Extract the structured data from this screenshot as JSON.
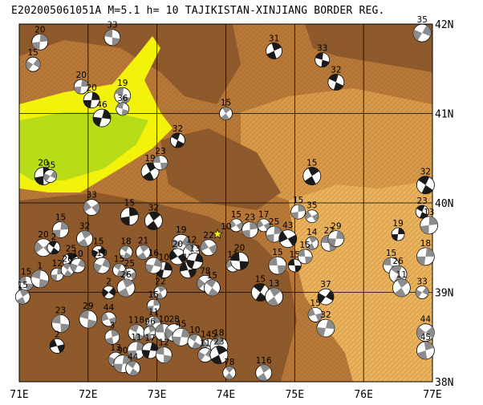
{
  "title": "E202005061051A M=5.1 h= 10 TAJIKISTAN-XINJIANG BORDER REG.",
  "colors": {
    "terrain_dark": "#8e5a2c",
    "terrain_mid": "#b87838",
    "terrain_light": "#d89a48",
    "terrain_pale": "#eab25a",
    "basin_yellow": "#f2f20a",
    "basin_green": "#b8dc18",
    "grid": "#000000",
    "epicenter": "#f2f20a"
  },
  "map": {
    "lon_labels": [
      "71E",
      "72E",
      "73E",
      "74E",
      "75E",
      "76E",
      "77E"
    ],
    "lat_labels": [
      "42N",
      "41N",
      "40N",
      "39N",
      "38N"
    ],
    "main_event": {
      "lon": 73.88,
      "lat": 39.65,
      "depth_label": "10"
    }
  },
  "events": [
    {
      "lon": 71.3,
      "lat": 41.8,
      "d": "20"
    },
    {
      "lon": 71.2,
      "lat": 41.55,
      "d": "15"
    },
    {
      "lon": 72.35,
      "lat": 41.85,
      "d": "33"
    },
    {
      "lon": 71.9,
      "lat": 41.3,
      "d": "20"
    },
    {
      "lon": 72.05,
      "lat": 41.15,
      "d": "20"
    },
    {
      "lon": 72.2,
      "lat": 40.95,
      "d": "46"
    },
    {
      "lon": 72.5,
      "lat": 41.2,
      "d": "19"
    },
    {
      "lon": 72.5,
      "lat": 41.05,
      "d": "36"
    },
    {
      "lon": 74.7,
      "lat": 41.7,
      "d": "31"
    },
    {
      "lon": 75.4,
      "lat": 41.6,
      "d": "33"
    },
    {
      "lon": 75.6,
      "lat": 41.35,
      "d": "32"
    },
    {
      "lon": 74.0,
      "lat": 41.0,
      "d": "15"
    },
    {
      "lon": 76.85,
      "lat": 41.9,
      "d": "35"
    },
    {
      "lon": 73.3,
      "lat": 40.7,
      "d": "32"
    },
    {
      "lon": 72.9,
      "lat": 40.35,
      "d": "19"
    },
    {
      "lon": 73.05,
      "lat": 40.45,
      "d": "23"
    },
    {
      "lon": 71.35,
      "lat": 40.3,
      "d": "20"
    },
    {
      "lon": 71.45,
      "lat": 40.3,
      "d": "35"
    },
    {
      "lon": 75.25,
      "lat": 40.3,
      "d": "15"
    },
    {
      "lon": 76.9,
      "lat": 40.2,
      "d": "32"
    },
    {
      "lon": 72.05,
      "lat": 39.95,
      "d": "33"
    },
    {
      "lon": 72.6,
      "lat": 39.85,
      "d": "15"
    },
    {
      "lon": 72.95,
      "lat": 39.8,
      "d": "32"
    },
    {
      "lon": 75.05,
      "lat": 39.9,
      "d": "15"
    },
    {
      "lon": 75.25,
      "lat": 39.85,
      "d": "35"
    },
    {
      "lon": 76.85,
      "lat": 39.9,
      "d": "23"
    },
    {
      "lon": 76.5,
      "lat": 39.65,
      "d": "19"
    },
    {
      "lon": 76.95,
      "lat": 39.75,
      "d": "13"
    },
    {
      "lon": 71.6,
      "lat": 39.7,
      "d": "15"
    },
    {
      "lon": 71.95,
      "lat": 39.6,
      "d": "32"
    },
    {
      "lon": 71.35,
      "lat": 39.5,
      "d": "20"
    },
    {
      "lon": 71.5,
      "lat": 39.5,
      "d": "2"
    },
    {
      "lon": 71.75,
      "lat": 39.35,
      "d": "25"
    },
    {
      "lon": 72.15,
      "lat": 39.45,
      "d": "15"
    },
    {
      "lon": 72.55,
      "lat": 39.45,
      "d": "18"
    },
    {
      "lon": 72.8,
      "lat": 39.45,
      "d": "21"
    },
    {
      "lon": 73.35,
      "lat": 39.55,
      "d": "19"
    },
    {
      "lon": 73.3,
      "lat": 39.4,
      "d": "20"
    },
    {
      "lon": 73.5,
      "lat": 39.45,
      "d": "12"
    },
    {
      "lon": 73.75,
      "lat": 39.5,
      "d": "22"
    },
    {
      "lon": 74.15,
      "lat": 39.75,
      "d": "15"
    },
    {
      "lon": 74.35,
      "lat": 39.7,
      "d": "23"
    },
    {
      "lon": 74.55,
      "lat": 39.75,
      "d": "17"
    },
    {
      "lon": 74.7,
      "lat": 39.65,
      "d": "25"
    },
    {
      "lon": 74.9,
      "lat": 39.6,
      "d": "43"
    },
    {
      "lon": 75.25,
      "lat": 39.55,
      "d": "14"
    },
    {
      "lon": 75.5,
      "lat": 39.55,
      "d": "22"
    },
    {
      "lon": 75.6,
      "lat": 39.6,
      "d": "29"
    },
    {
      "lon": 74.1,
      "lat": 39.3,
      "d": "11"
    },
    {
      "lon": 74.2,
      "lat": 39.35,
      "d": "20"
    },
    {
      "lon": 74.75,
      "lat": 39.3,
      "d": "15"
    },
    {
      "lon": 75.0,
      "lat": 39.3,
      "d": "15"
    },
    {
      "lon": 75.15,
      "lat": 39.4,
      "d": "15"
    },
    {
      "lon": 76.4,
      "lat": 39.3,
      "d": "15"
    },
    {
      "lon": 76.5,
      "lat": 39.2,
      "d": "26"
    },
    {
      "lon": 76.9,
      "lat": 39.4,
      "d": "18"
    },
    {
      "lon": 71.1,
      "lat": 39.1,
      "d": "15"
    },
    {
      "lon": 71.3,
      "lat": 39.15,
      "d": "1"
    },
    {
      "lon": 71.55,
      "lat": 39.2,
      "d": "12"
    },
    {
      "lon": 71.7,
      "lat": 39.25,
      "d": "26"
    },
    {
      "lon": 71.85,
      "lat": 39.3,
      "d": "10"
    },
    {
      "lon": 72.2,
      "lat": 39.3,
      "d": "10"
    },
    {
      "lon": 72.45,
      "lat": 39.25,
      "d": "15"
    },
    {
      "lon": 72.6,
      "lat": 39.2,
      "d": "25"
    },
    {
      "lon": 72.3,
      "lat": 39.0,
      "d": "2"
    },
    {
      "lon": 72.55,
      "lat": 39.05,
      "d": "26"
    },
    {
      "lon": 73.05,
      "lat": 39.0,
      "d": "22"
    },
    {
      "lon": 73.7,
      "lat": 39.1,
      "d": "78"
    },
    {
      "lon": 73.8,
      "lat": 39.05,
      "d": "15"
    },
    {
      "lon": 74.5,
      "lat": 39.0,
      "d": "15"
    },
    {
      "lon": 74.7,
      "lat": 38.95,
      "d": "13"
    },
    {
      "lon": 75.45,
      "lat": 38.95,
      "d": "37"
    },
    {
      "lon": 76.55,
      "lat": 39.05,
      "d": "11"
    },
    {
      "lon": 76.85,
      "lat": 39.0,
      "d": "33"
    },
    {
      "lon": 71.05,
      "lat": 38.95,
      "d": "15"
    },
    {
      "lon": 71.6,
      "lat": 38.65,
      "d": "23"
    },
    {
      "lon": 71.55,
      "lat": 38.4,
      "d": "2"
    },
    {
      "lon": 72.0,
      "lat": 38.7,
      "d": "29"
    },
    {
      "lon": 72.3,
      "lat": 38.7,
      "d": "44"
    },
    {
      "lon": 72.35,
      "lat": 38.5,
      "d": "3"
    },
    {
      "lon": 72.95,
      "lat": 38.85,
      "d": "15"
    },
    {
      "lon": 72.95,
      "lat": 38.65,
      "d": "11"
    },
    {
      "lon": 72.7,
      "lat": 38.55,
      "d": "118"
    },
    {
      "lon": 72.9,
      "lat": 38.55,
      "d": "96"
    },
    {
      "lon": 73.1,
      "lat": 38.55,
      "d": "10"
    },
    {
      "lon": 73.25,
      "lat": 38.55,
      "d": "28"
    },
    {
      "lon": 73.35,
      "lat": 38.5,
      "d": "45"
    },
    {
      "lon": 72.7,
      "lat": 38.35,
      "d": "11"
    },
    {
      "lon": 72.9,
      "lat": 38.35,
      "d": "17"
    },
    {
      "lon": 73.1,
      "lat": 38.3,
      "d": "12"
    },
    {
      "lon": 72.4,
      "lat": 38.25,
      "d": "13"
    },
    {
      "lon": 72.5,
      "lat": 38.2,
      "d": "90"
    },
    {
      "lon": 72.65,
      "lat": 38.15,
      "d": "44"
    },
    {
      "lon": 73.55,
      "lat": 38.45,
      "d": "10"
    },
    {
      "lon": 73.75,
      "lat": 38.4,
      "d": "145"
    },
    {
      "lon": 73.9,
      "lat": 38.4,
      "d": "18"
    },
    {
      "lon": 73.7,
      "lat": 38.3,
      "d": "11"
    },
    {
      "lon": 73.9,
      "lat": 38.3,
      "d": "23"
    },
    {
      "lon": 74.05,
      "lat": 38.1,
      "d": "78"
    },
    {
      "lon": 74.55,
      "lat": 38.1,
      "d": "116"
    },
    {
      "lon": 75.3,
      "lat": 38.75,
      "d": "15"
    },
    {
      "lon": 75.45,
      "lat": 38.6,
      "d": "32"
    },
    {
      "lon": 76.9,
      "lat": 38.55,
      "d": "44"
    },
    {
      "lon": 76.9,
      "lat": 38.35,
      "d": "45"
    },
    {
      "lon": 73.1,
      "lat": 39.25,
      "d": "10"
    },
    {
      "lon": 73.45,
      "lat": 39.25,
      "d": "15"
    },
    {
      "lon": 72.95,
      "lat": 39.3,
      "d": "16"
    },
    {
      "lon": 73.55,
      "lat": 39.35,
      "d": "13"
    }
  ]
}
